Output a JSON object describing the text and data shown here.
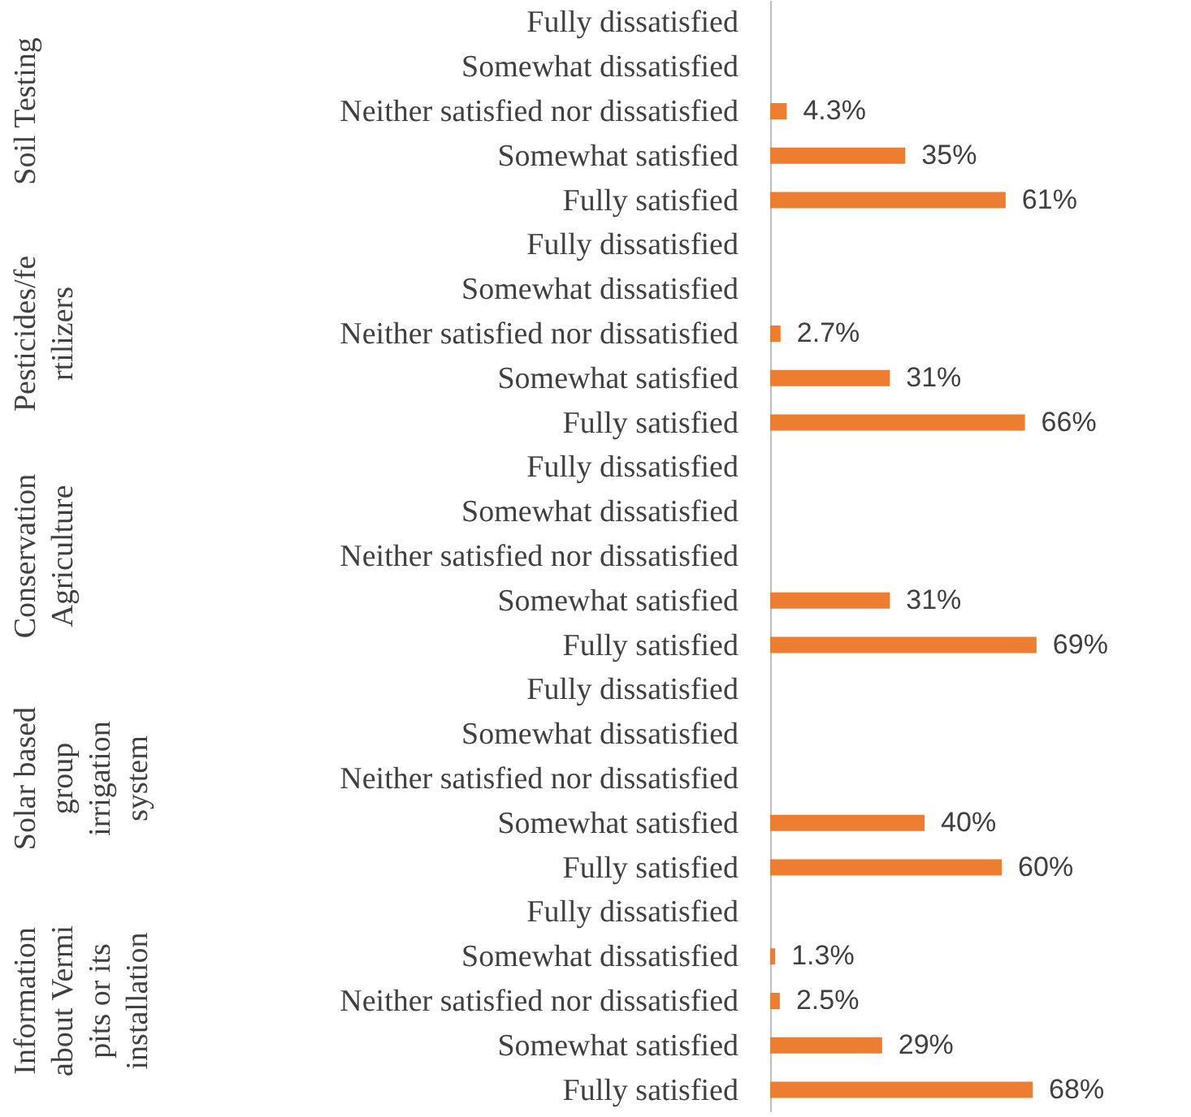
{
  "chart_data": [
    {
      "type": "bar",
      "orientation": "horizontal",
      "ylabel": "Soil Testing",
      "categories": [
        "Fully dissatisfied",
        "Somewhat dissatisfied",
        "Neither satisfied nor dissatisfied",
        "Somewhat satisfied",
        "Fully satisfied"
      ],
      "values": [
        null,
        null,
        4.3,
        35,
        61
      ],
      "value_labels": [
        null,
        null,
        "4.3%",
        "35%",
        "61%"
      ],
      "color": "#ed7d31"
    },
    {
      "type": "bar",
      "orientation": "horizontal",
      "ylabel": "Pesticides/fe\nrtilizers",
      "categories": [
        "Fully dissatisfied",
        "Somewhat dissatisfied",
        "Neither satisfied nor dissatisfied",
        "Somewhat satisfied",
        "Fully satisfied"
      ],
      "values": [
        null,
        null,
        2.7,
        31,
        66
      ],
      "value_labels": [
        null,
        null,
        "2.7%",
        "31%",
        "66%"
      ],
      "color": "#ed7d31"
    },
    {
      "type": "bar",
      "orientation": "horizontal",
      "ylabel": "Conservation\nAgriculture",
      "categories": [
        "Fully dissatisfied",
        "Somewhat dissatisfied",
        "Neither satisfied nor dissatisfied",
        "Somewhat satisfied",
        "Fully satisfied"
      ],
      "values": [
        null,
        null,
        null,
        31,
        69
      ],
      "value_labels": [
        null,
        null,
        null,
        "31%",
        "69%"
      ],
      "color": "#ed7d31"
    },
    {
      "type": "bar",
      "orientation": "horizontal",
      "ylabel": "Solar based\ngroup\nirrigation\nsystem",
      "categories": [
        "Fully dissatisfied",
        "Somewhat dissatisfied",
        "Neither satisfied nor dissatisfied",
        "Somewhat satisfied",
        "Fully satisfied"
      ],
      "values": [
        null,
        null,
        null,
        40,
        60
      ],
      "value_labels": [
        null,
        null,
        null,
        "40%",
        "60%"
      ],
      "color": "#ed7d31"
    },
    {
      "type": "bar",
      "orientation": "horizontal",
      "ylabel": "Information\nabout Vermi\npits or its\ninstallation",
      "categories": [
        "Fully dissatisfied",
        "Somewhat dissatisfied",
        "Neither satisfied nor dissatisfied",
        "Somewhat satisfied",
        "Fully satisfied"
      ],
      "values": [
        null,
        1.3,
        2.5,
        29,
        68
      ],
      "value_labels": [
        null,
        "1.3%",
        "2.5%",
        "29%",
        "68%"
      ],
      "color": "#ed7d31"
    }
  ]
}
